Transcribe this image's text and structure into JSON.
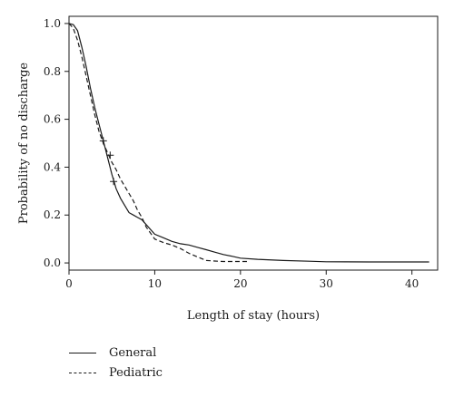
{
  "chart_data": {
    "type": "line",
    "title": "",
    "xlabel": "Length of stay (hours)",
    "ylabel": "Probability of no discharge",
    "xlim": [
      0,
      43
    ],
    "ylim": [
      -0.03,
      1.03
    ],
    "xticks": [
      0,
      10,
      20,
      30,
      40
    ],
    "yticks": [
      0.0,
      0.2,
      0.4,
      0.6,
      0.8,
      1.0
    ],
    "xtick_labels": [
      "0",
      "10",
      "20",
      "30",
      "40"
    ],
    "ytick_labels": [
      "0.0",
      "0.2",
      "0.4",
      "0.6",
      "0.8",
      "1.0"
    ],
    "grid": false,
    "legend_position": "bottom-left",
    "series": [
      {
        "name": "General",
        "style": "solid",
        "color": "#1a1a1a",
        "x": [
          0,
          0.5,
          1.0,
          1.5,
          2.0,
          2.5,
          3.0,
          3.5,
          4.0,
          4.5,
          5.0,
          5.5,
          6.0,
          6.5,
          7.0,
          7.5,
          8.0,
          8.5,
          9.0,
          10.0,
          11.0,
          12.0,
          13.0,
          14.0,
          15.0,
          16.0,
          17.0,
          18.0,
          19.0,
          20.0,
          22.0,
          25.0,
          28.0,
          30.0,
          35.0,
          42.0
        ],
        "y": [
          1.0,
          0.995,
          0.97,
          0.9,
          0.82,
          0.73,
          0.65,
          0.58,
          0.51,
          0.44,
          0.37,
          0.31,
          0.27,
          0.24,
          0.21,
          0.2,
          0.19,
          0.18,
          0.16,
          0.12,
          0.105,
          0.09,
          0.08,
          0.075,
          0.065,
          0.055,
          0.045,
          0.035,
          0.028,
          0.02,
          0.015,
          0.01,
          0.007,
          0.005,
          0.004,
          0.004
        ],
        "censor_marks": [
          {
            "x": 4.0,
            "y": 0.51
          },
          {
            "x": 4.8,
            "y": 0.45
          },
          {
            "x": 5.2,
            "y": 0.34
          }
        ]
      },
      {
        "name": "Pediatric",
        "style": "dashed",
        "color": "#1a1a1a",
        "x": [
          0,
          0.5,
          1.0,
          1.5,
          2.0,
          2.5,
          3.0,
          3.5,
          4.0,
          4.5,
          5.0,
          5.5,
          6.0,
          6.5,
          7.0,
          7.5,
          8.0,
          8.5,
          9.0,
          10.0,
          11.0,
          12.0,
          13.0,
          14.0,
          15.0,
          16.0,
          17.0,
          18.0,
          19.0,
          20.0,
          21.0
        ],
        "y": [
          1.0,
          0.98,
          0.93,
          0.86,
          0.78,
          0.7,
          0.62,
          0.55,
          0.5,
          0.46,
          0.42,
          0.39,
          0.35,
          0.32,
          0.29,
          0.26,
          0.22,
          0.19,
          0.15,
          0.1,
          0.085,
          0.075,
          0.06,
          0.04,
          0.025,
          0.01,
          0.008,
          0.006,
          0.006,
          0.006,
          0.006
        ]
      }
    ]
  }
}
